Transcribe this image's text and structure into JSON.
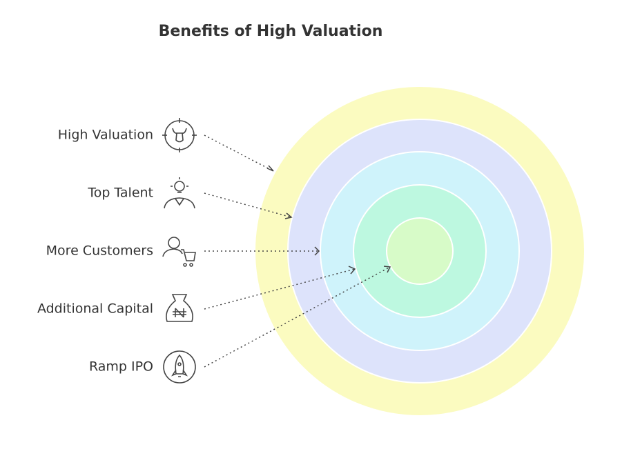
{
  "title": "Benefits of High Valuation",
  "items": [
    {
      "label": "High Valuation"
    },
    {
      "label": "Top Talent"
    },
    {
      "label": "More Customers"
    },
    {
      "label": "Additional Capital"
    },
    {
      "label": "Ramp IPO"
    }
  ]
}
